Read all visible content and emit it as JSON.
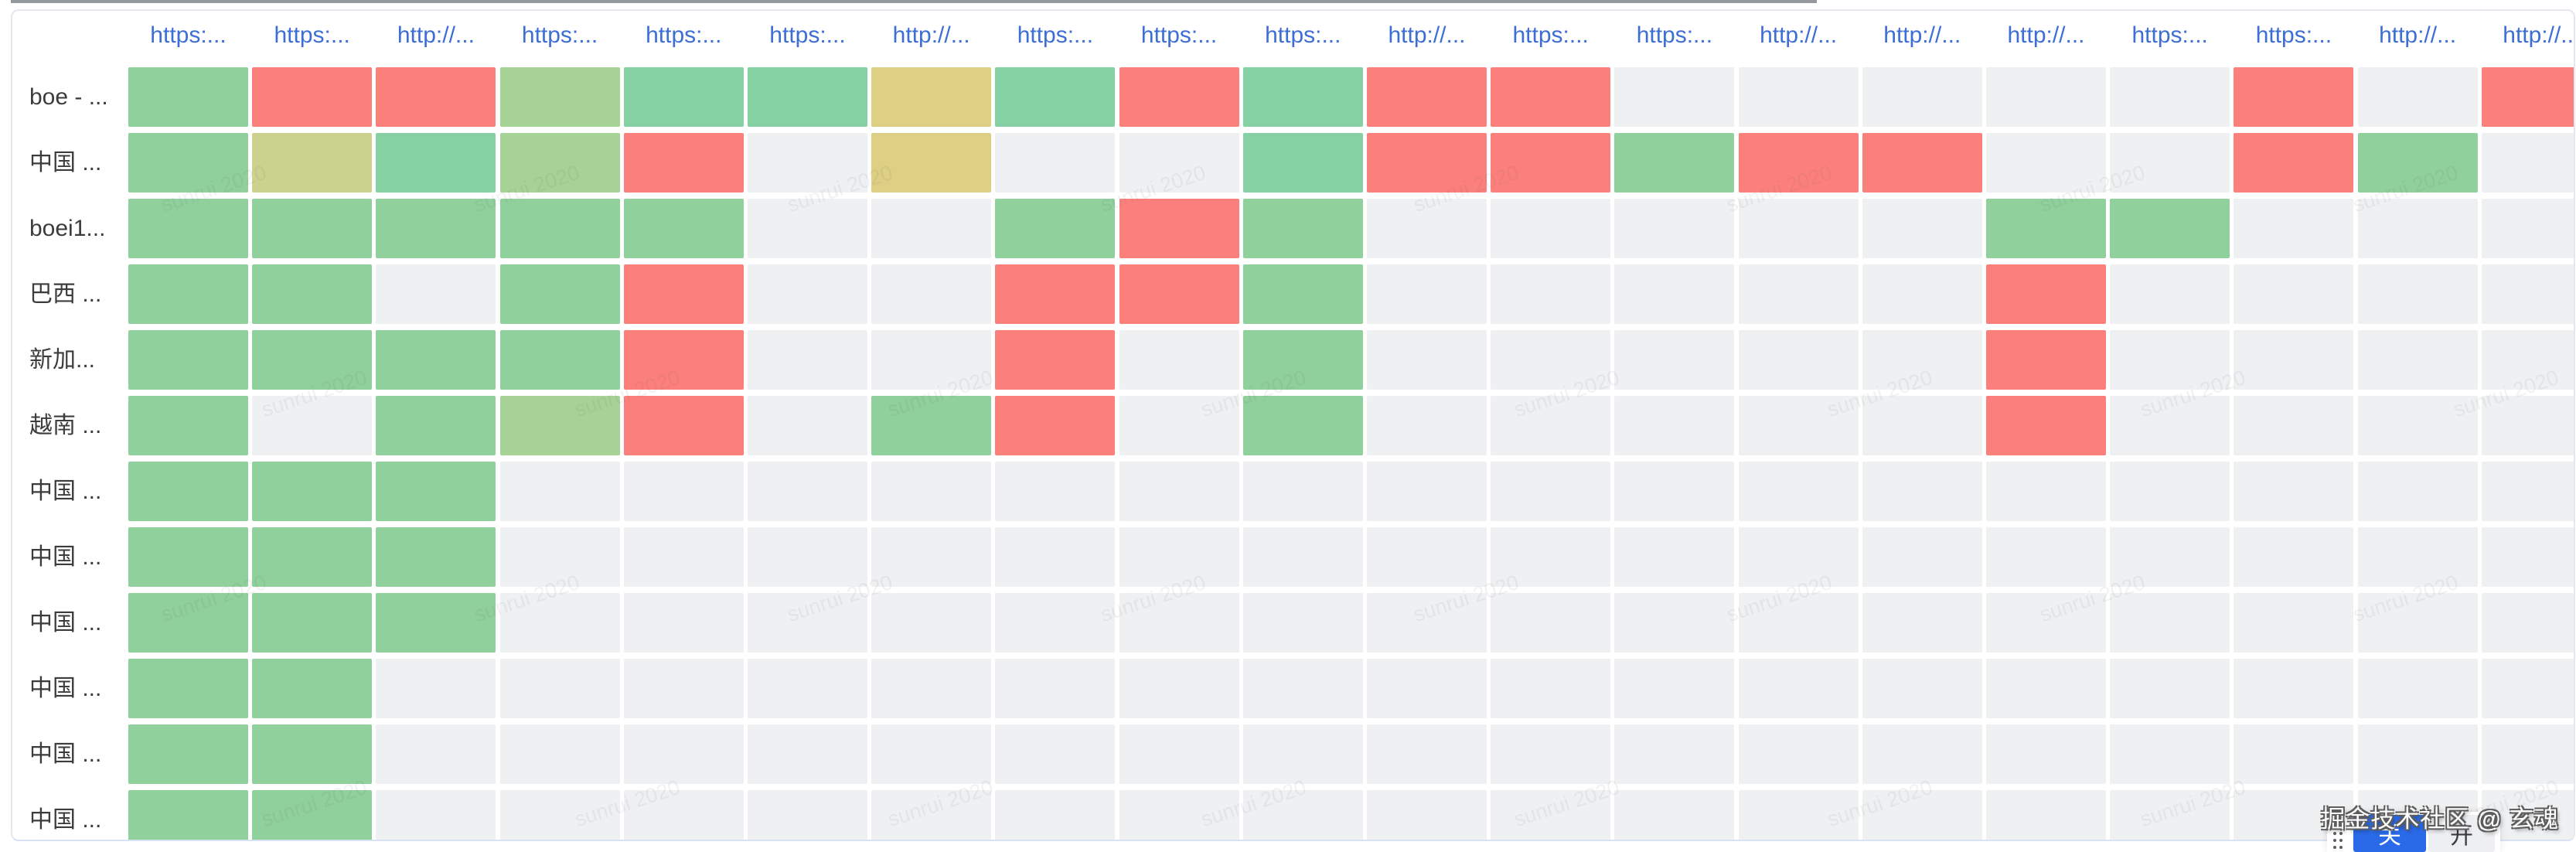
{
  "chart_data": {
    "type": "heatmap",
    "title": "",
    "x_labels": [
      "https:...",
      "https:...",
      "http://...",
      "https:...",
      "https:...",
      "https:...",
      "http://...",
      "https:...",
      "https:...",
      "https:...",
      "http://...",
      "https:...",
      "https:...",
      "http://...",
      "http://...",
      "http://...",
      "https:...",
      "https:...",
      "http://...",
      "http://..."
    ],
    "y_labels": [
      "boe - ...",
      "中国 ...",
      "boei1...",
      "巴西 ...",
      "新加...",
      "越南 ...",
      "中国 ...",
      "中国 ...",
      "中国 ...",
      "中国 ...",
      "中国 ...",
      "中国 ..."
    ],
    "cells": [
      [
        "green",
        "red",
        "red",
        "ygreen",
        "teal",
        "teal",
        "khaki",
        "teal",
        "red",
        "teal",
        "red",
        "red",
        "empty",
        "empty",
        "empty",
        "empty",
        "empty",
        "red",
        "empty",
        "red"
      ],
      [
        "green",
        "kgreen",
        "teal",
        "ygreen",
        "red",
        "empty",
        "khaki",
        "empty",
        "empty",
        "teal",
        "red",
        "red",
        "green",
        "red",
        "red",
        "empty",
        "empty",
        "red",
        "green",
        "empty"
      ],
      [
        "green",
        "green",
        "green",
        "green",
        "green",
        "empty",
        "empty",
        "green",
        "red",
        "green",
        "empty",
        "empty",
        "empty",
        "empty",
        "empty",
        "green",
        "green",
        "empty",
        "empty",
        "empty"
      ],
      [
        "green",
        "green",
        "empty",
        "green",
        "red",
        "empty",
        "empty",
        "red",
        "red",
        "green",
        "empty",
        "empty",
        "empty",
        "empty",
        "empty",
        "red",
        "empty",
        "empty",
        "empty",
        "empty"
      ],
      [
        "green",
        "green",
        "green",
        "green",
        "red",
        "empty",
        "empty",
        "red",
        "empty",
        "green",
        "empty",
        "empty",
        "empty",
        "empty",
        "empty",
        "red",
        "empty",
        "empty",
        "empty",
        "empty"
      ],
      [
        "green",
        "empty",
        "green",
        "ygreen",
        "red",
        "empty",
        "green",
        "red",
        "empty",
        "green",
        "empty",
        "empty",
        "empty",
        "empty",
        "empty",
        "red",
        "empty",
        "empty",
        "empty",
        "empty"
      ],
      [
        "green",
        "green",
        "green",
        "empty",
        "empty",
        "empty",
        "empty",
        "empty",
        "empty",
        "empty",
        "empty",
        "empty",
        "empty",
        "empty",
        "empty",
        "empty",
        "empty",
        "empty",
        "empty",
        "empty"
      ],
      [
        "green",
        "green",
        "green",
        "empty",
        "empty",
        "empty",
        "empty",
        "empty",
        "empty",
        "empty",
        "empty",
        "empty",
        "empty",
        "empty",
        "empty",
        "empty",
        "empty",
        "empty",
        "empty",
        "empty"
      ],
      [
        "green",
        "green",
        "green",
        "empty",
        "empty",
        "empty",
        "empty",
        "empty",
        "empty",
        "empty",
        "empty",
        "empty",
        "empty",
        "empty",
        "empty",
        "empty",
        "empty",
        "empty",
        "empty",
        "empty"
      ],
      [
        "green",
        "green",
        "empty",
        "empty",
        "empty",
        "empty",
        "empty",
        "empty",
        "empty",
        "empty",
        "empty",
        "empty",
        "empty",
        "empty",
        "empty",
        "empty",
        "empty",
        "empty",
        "empty",
        "empty"
      ],
      [
        "green",
        "green",
        "empty",
        "empty",
        "empty",
        "empty",
        "empty",
        "empty",
        "empty",
        "empty",
        "empty",
        "empty",
        "empty",
        "empty",
        "empty",
        "empty",
        "empty",
        "empty",
        "empty",
        "empty"
      ],
      [
        "green",
        "green",
        "empty",
        "empty",
        "empty",
        "empty",
        "empty",
        "empty",
        "empty",
        "empty",
        "empty",
        "empty",
        "empty",
        "empty",
        "empty",
        "empty",
        "empty",
        "empty",
        "empty",
        "empty"
      ]
    ],
    "state_colors": {
      "green": "#90D09C",
      "teal": "#85D1A3",
      "ygreen": "#A7D295",
      "kgreen": "#CBD28E",
      "khaki": "#DDCF83",
      "red": "#FB807C",
      "empty": "#EEF0F2"
    },
    "x_label_color": "#3D6ED6",
    "grid": "white gaps between cells",
    "legend_position": "none"
  },
  "controls": {
    "off_label": "关",
    "on_label": "开"
  },
  "watermarks": {
    "tile": "sunrui 2020",
    "credit": "掘金技术社区 @ 玄魂"
  }
}
